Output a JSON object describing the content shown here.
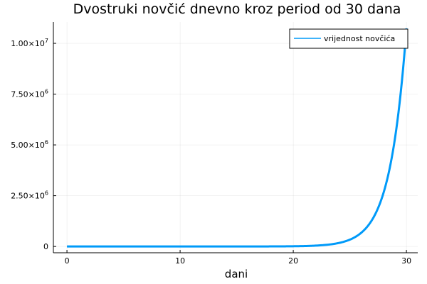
{
  "chart_data": {
    "type": "line",
    "title": "Dvostruki novčić dnevno kroz period od 30 dana",
    "xlabel": "dani",
    "ylabel": "",
    "xlim": [
      -1.2,
      31
    ],
    "ylim": [
      -310000,
      11050000
    ],
    "grid": true,
    "legend_position": "top-right",
    "x_ticks": [
      {
        "value": 0,
        "label": "0"
      },
      {
        "value": 10,
        "label": "10"
      },
      {
        "value": 20,
        "label": "20"
      },
      {
        "value": 30,
        "label": "30"
      }
    ],
    "y_ticks": [
      {
        "value": 0,
        "mantissa": "0",
        "exponent": ""
      },
      {
        "value": 2500000,
        "mantissa": "2.50×10",
        "exponent": "6"
      },
      {
        "value": 5000000,
        "mantissa": "5.00×10",
        "exponent": "6"
      },
      {
        "value": 7500000,
        "mantissa": "7.50×10",
        "exponent": "6"
      },
      {
        "value": 10000000,
        "mantissa": "1.00×10",
        "exponent": "7"
      }
    ],
    "series": [
      {
        "name": "vrijednost novčića",
        "color": "#009af9",
        "x": [
          0,
          1,
          2,
          3,
          4,
          5,
          6,
          7,
          8,
          9,
          10,
          11,
          12,
          13,
          14,
          15,
          16,
          17,
          18,
          19,
          20,
          21,
          22,
          23,
          24,
          25,
          26,
          27,
          28,
          29,
          30
        ],
        "y": [
          0.01,
          0.02,
          0.04,
          0.08,
          0.16,
          0.32,
          0.64,
          1.28,
          2.56,
          5.12,
          10.24,
          20.48,
          40.96,
          81.92,
          163.84,
          327.68,
          655.36,
          1310.72,
          2621.44,
          5242.88,
          10485.76,
          20971.52,
          41943.04,
          83886.08,
          167772.16,
          335544.32,
          671088.64,
          1342177.28,
          2684354.56,
          5368709.12,
          10737418.24
        ]
      }
    ]
  }
}
